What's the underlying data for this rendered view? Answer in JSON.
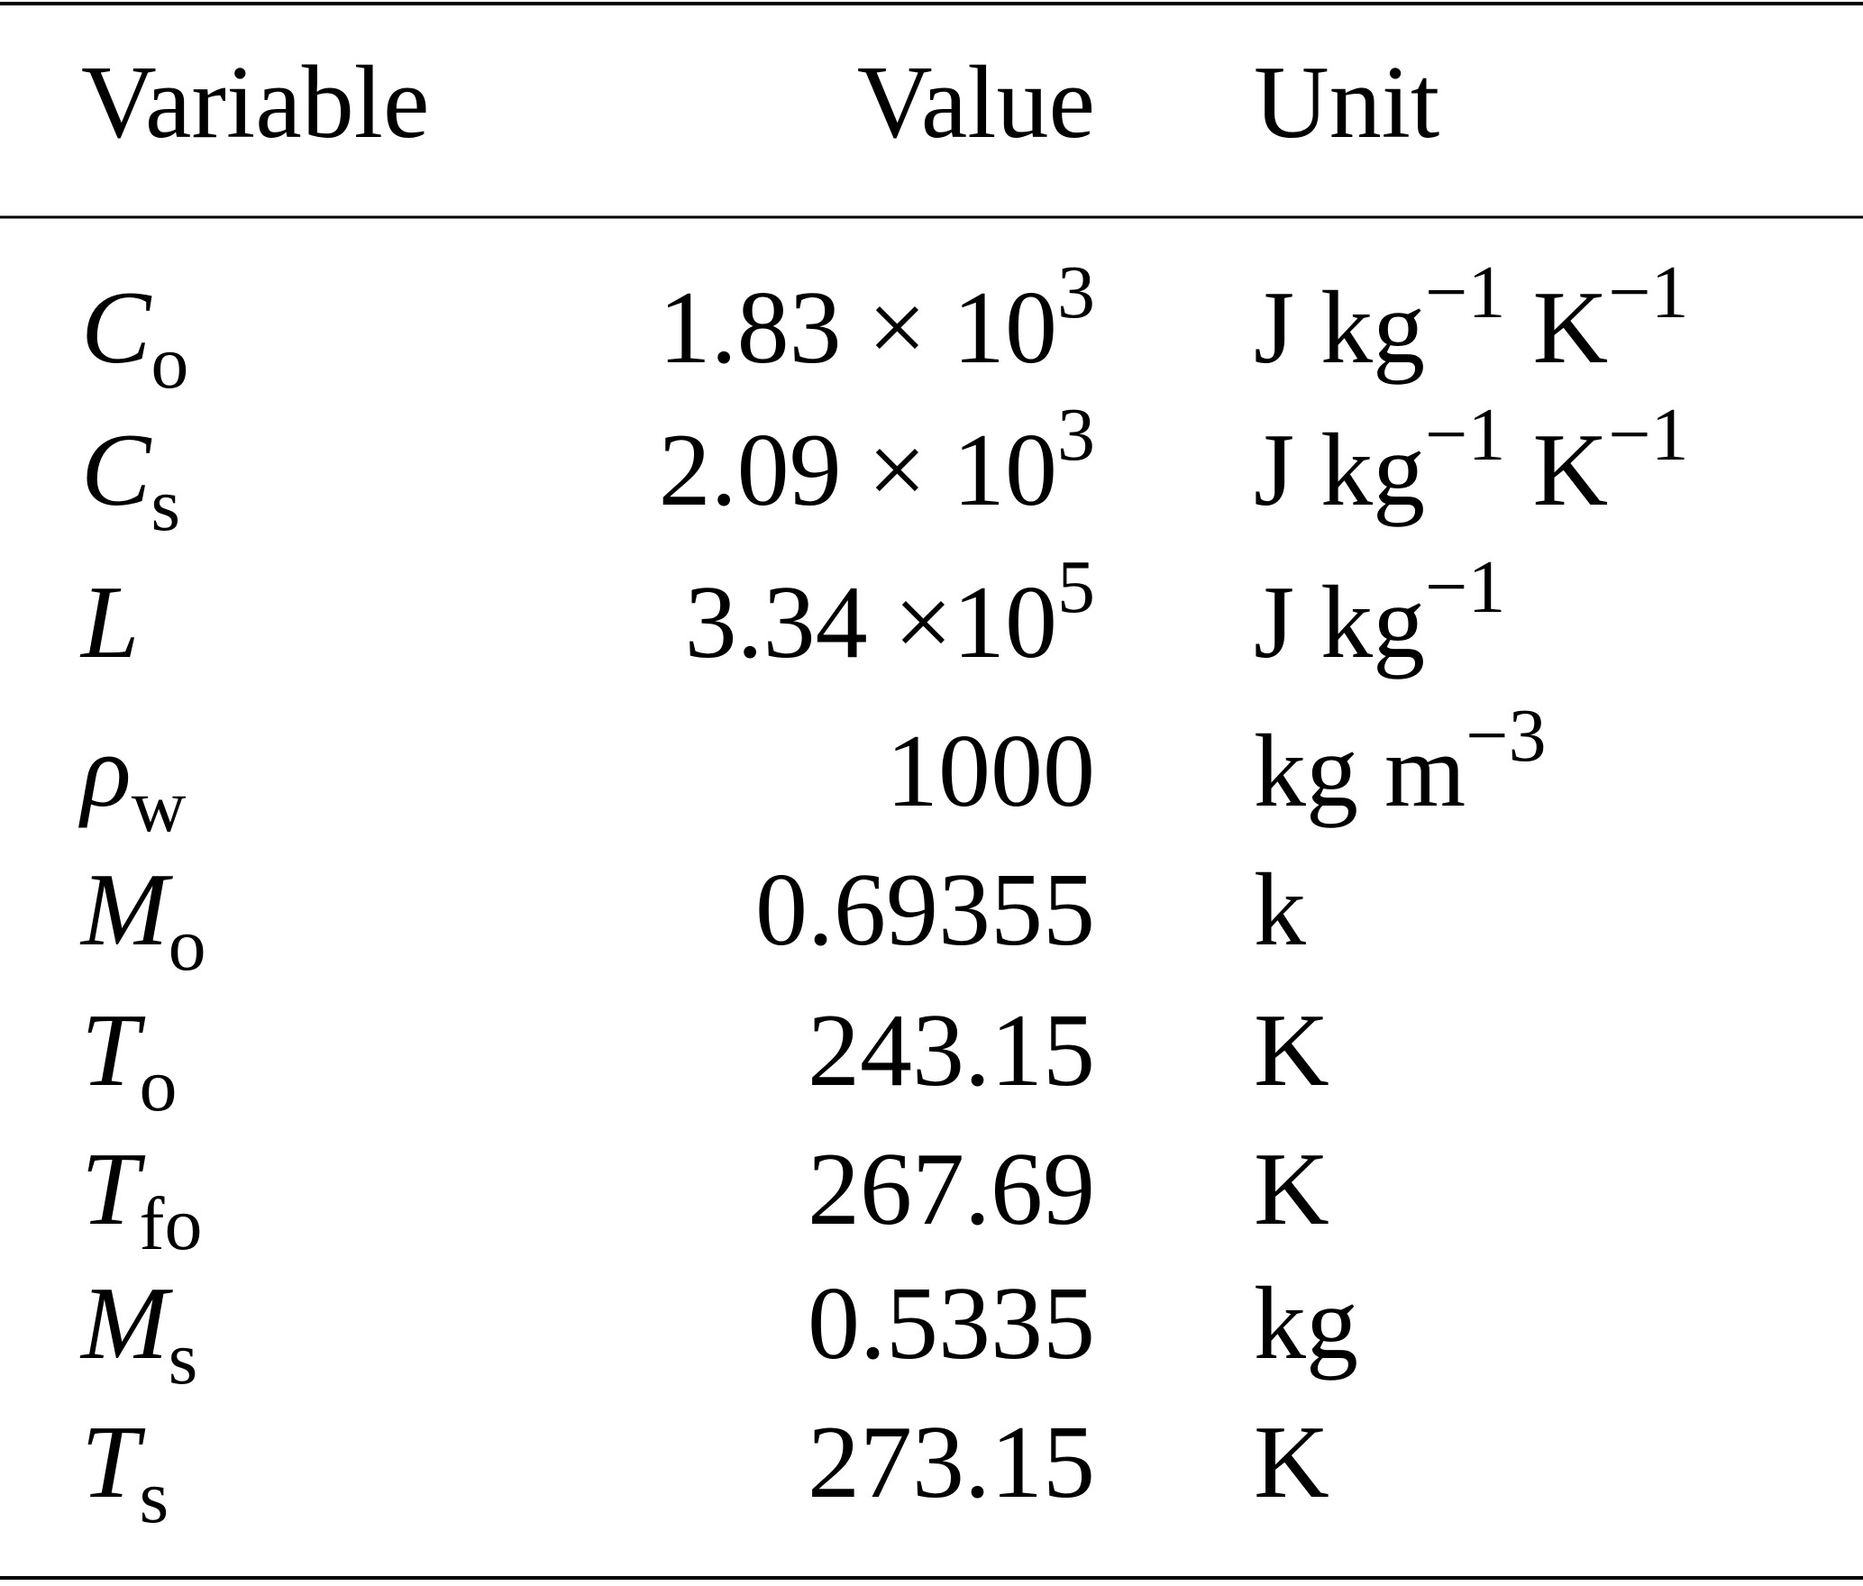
{
  "table": {
    "header": [
      "Variable",
      "Value",
      "Unit"
    ],
    "rows": [
      {
        "variable": {
          "symbol": "C",
          "sub": "o"
        },
        "value": {
          "base": "1.83 × 10",
          "sup": "3"
        },
        "unit": [
          {
            "text": "J kg",
            "sup": "−1"
          },
          {
            "text": "K",
            "sup": "−1"
          }
        ]
      },
      {
        "variable": {
          "symbol": "C",
          "sub": "s"
        },
        "value": {
          "base": "2.09 × 10",
          "sup": "3"
        },
        "unit": [
          {
            "text": "J kg",
            "sup": "−1"
          },
          {
            "text": "K",
            "sup": "−1"
          }
        ]
      },
      {
        "variable": {
          "symbol": "L"
        },
        "value": {
          "base": "3.34 ×10",
          "sup": "5"
        },
        "unit": [
          {
            "text": "J kg",
            "sup": "−1"
          }
        ]
      },
      {
        "variable": {
          "symbol": "ρ",
          "sub": "w"
        },
        "value": {
          "base": "1000"
        },
        "unit": [
          {
            "text": "kg m",
            "sup": "−3"
          }
        ]
      },
      {
        "variable": {
          "symbol": "M",
          "sub": "o"
        },
        "value": {
          "base": "0.69355"
        },
        "unit": [
          {
            "text": "k"
          }
        ]
      },
      {
        "variable": {
          "symbol": "T",
          "sub": "o"
        },
        "value": {
          "base": "243.15"
        },
        "unit": [
          {
            "text": "K"
          }
        ]
      },
      {
        "variable": {
          "symbol": "T",
          "sub": "fo"
        },
        "value": {
          "base": "267.69"
        },
        "unit": [
          {
            "text": "K"
          }
        ]
      },
      {
        "variable": {
          "symbol": "M",
          "sub": "s"
        },
        "value": {
          "base": "0.5335"
        },
        "unit": [
          {
            "text": "kg"
          }
        ]
      },
      {
        "variable": {
          "symbol": "T",
          "sub": "s"
        },
        "value": {
          "base": "273.15"
        },
        "unit": [
          {
            "text": "K"
          }
        ]
      }
    ]
  }
}
